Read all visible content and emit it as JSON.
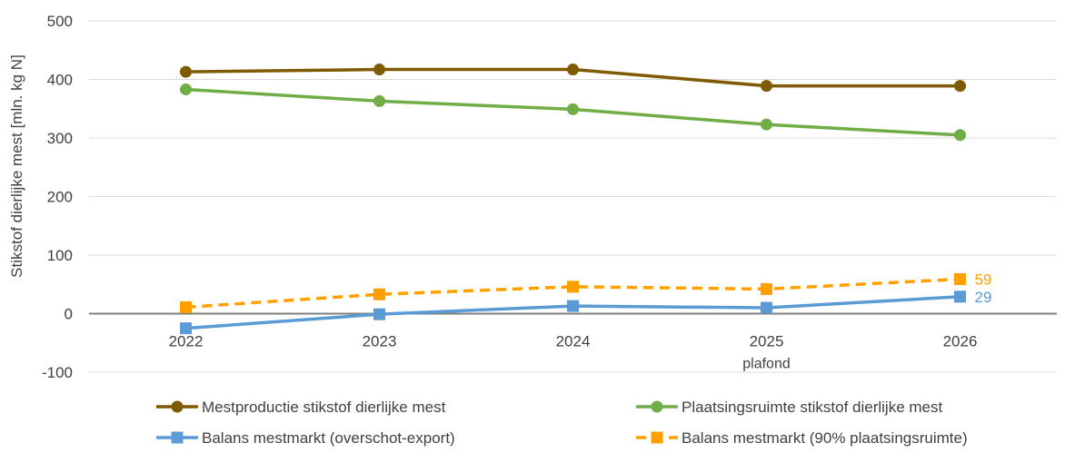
{
  "chart_data": {
    "type": "line",
    "categories": [
      "2022",
      "2023",
      "2024",
      "2025",
      "2026"
    ],
    "category_sublabels": [
      "",
      "",
      "",
      "plafond",
      ""
    ],
    "ylabel": "Stikstof dierlijke mest [mln. kg N]",
    "ylim": [
      -100,
      500
    ],
    "yticks": [
      -100,
      0,
      100,
      200,
      300,
      400,
      500
    ],
    "grid": true,
    "legend_position": "bottom",
    "series": [
      {
        "name": "Mestproductie stikstof dierlijke mest",
        "values": [
          413,
          417,
          417,
          389,
          389
        ],
        "color": "#7f5a00",
        "marker": "circle",
        "dashed": false
      },
      {
        "name": "Plaatsingsruimte stikstof dierlijke mest",
        "values": [
          383,
          363,
          349,
          323,
          305
        ],
        "color": "#70ad47",
        "marker": "circle",
        "dashed": false
      },
      {
        "name": "Balans mestmarkt (overschot-export)",
        "values": [
          -25,
          -1,
          13,
          10,
          29
        ],
        "color": "#5b9bd5",
        "marker": "square",
        "dashed": false,
        "end_label": "29"
      },
      {
        "name": "Balans mestmarkt (90% plaatsingsruimte)",
        "values": [
          11,
          33,
          46,
          42,
          59
        ],
        "color": "#ffa000",
        "marker": "square",
        "dashed": true,
        "end_label": "59"
      }
    ]
  }
}
